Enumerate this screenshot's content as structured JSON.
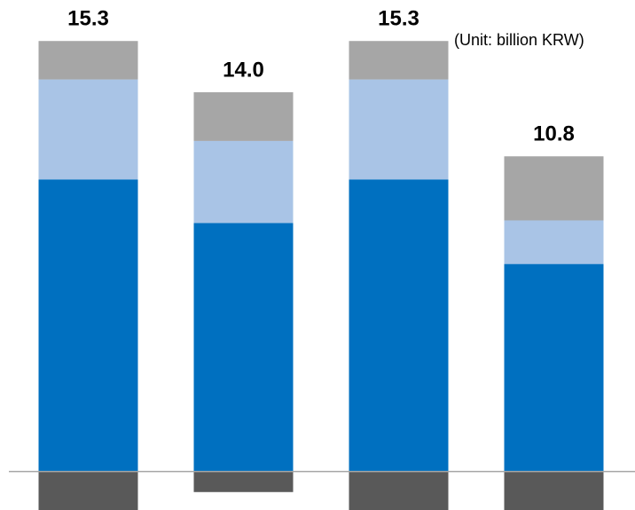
{
  "chart_data": {
    "type": "stacked_bar",
    "subtitle": "(Unit: billion KRW)",
    "categories": [
      null,
      null,
      null,
      null
    ],
    "series": [
      {
        "color": "#0070c0",
        "values": [
          11.4,
          9.7,
          11.4,
          8.1
        ]
      },
      {
        "color": "#a9c4e6",
        "values": [
          3.9,
          3.2,
          3.9,
          1.7
        ]
      },
      {
        "color": "#a6a6a6",
        "values": [
          1.5,
          1.9,
          1.5,
          2.5
        ]
      },
      {
        "color": "#595959",
        "values": [
          -1.5,
          -0.8,
          -1.5,
          -1.5
        ]
      }
    ],
    "totals": [
      15.3,
      14,
      15.3,
      10.8
    ],
    "total_labels": [
      "15.3",
      "14.0",
      "15.3",
      "10.8"
    ],
    "ylim": [
      -1.5,
      18.4
    ],
    "grid": false
  }
}
